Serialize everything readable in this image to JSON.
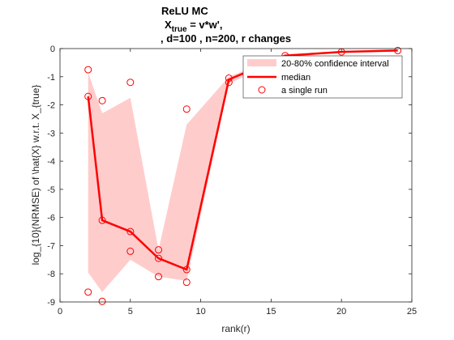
{
  "chart_data": {
    "type": "line",
    "title": {
      "line1": "ReLU MC",
      "line2_main": "X",
      "line2_sub": "true",
      "line2_rest": " = v*w',",
      "line3": ", d=100 , n=200, r changes"
    },
    "xlabel": "rank(r)",
    "ylabel": "log_{10}(NRMSE) of \\hat{X} w.r.t. X_{true}",
    "xlim": [
      0,
      25
    ],
    "ylim": [
      -9,
      0
    ],
    "xticks": [
      0,
      5,
      10,
      15,
      20,
      25
    ],
    "yticks": [
      0,
      -1,
      -2,
      -3,
      -4,
      -5,
      -6,
      -7,
      -8,
      -9
    ],
    "legend_position": "top-right",
    "legend": {
      "band": "20-80% confidence interval",
      "median": "median",
      "runs": "a single run"
    },
    "colors": {
      "median": "#ff0000",
      "band": "#ffcccc",
      "runs": "#ff0000"
    },
    "median": {
      "x": [
        2,
        3,
        5,
        7,
        9,
        12,
        16,
        20,
        24
      ],
      "y": [
        -1.7,
        -6.1,
        -6.5,
        -7.45,
        -7.85,
        -1.1,
        -0.25,
        -0.12,
        -0.07
      ]
    },
    "band": {
      "x": [
        2,
        3,
        5,
        7,
        9,
        12,
        16,
        20,
        24
      ],
      "lower": [
        -7.95,
        -8.65,
        -7.5,
        -8.1,
        -8.25,
        -1.25,
        -0.3,
        -0.15,
        -0.1
      ],
      "upper": [
        -0.85,
        -2.3,
        -1.75,
        -7.15,
        -2.7,
        -1.0,
        -0.2,
        -0.1,
        -0.05
      ]
    },
    "runs": {
      "x": [
        2,
        2,
        2,
        3,
        3,
        3,
        5,
        5,
        5,
        7,
        7,
        7,
        9,
        9,
        9,
        12,
        12,
        16,
        20,
        24
      ],
      "y": [
        -0.75,
        -1.7,
        -8.65,
        -1.85,
        -6.1,
        -8.98,
        -1.2,
        -6.5,
        -7.2,
        -7.15,
        -7.45,
        -8.1,
        -2.15,
        -7.85,
        -8.3,
        -1.05,
        -1.2,
        -0.25,
        -0.12,
        -0.07
      ]
    }
  }
}
